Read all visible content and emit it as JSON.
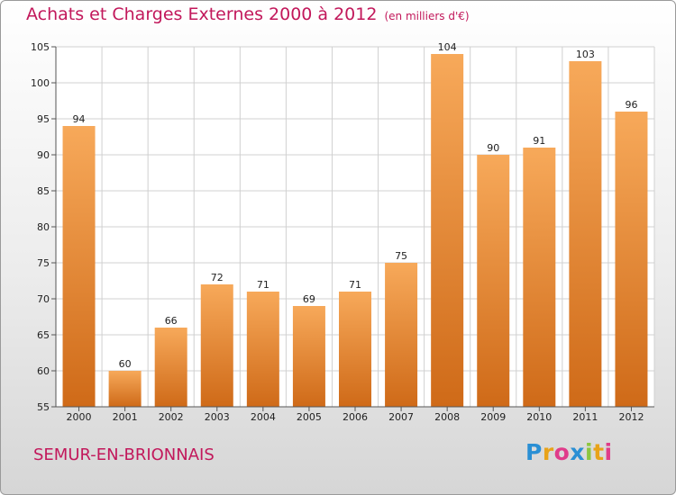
{
  "chart_data": {
    "type": "bar",
    "title": "Achats et Charges Externes 2000 à 2012",
    "subtitle": "(en milliers d'€)",
    "categories": [
      "2000",
      "2001",
      "2002",
      "2003",
      "2004",
      "2005",
      "2006",
      "2007",
      "2008",
      "2009",
      "2010",
      "2011",
      "2012"
    ],
    "values": [
      94,
      60,
      66,
      72,
      71,
      69,
      71,
      75,
      104,
      90,
      91,
      103,
      96
    ],
    "ylim": [
      55,
      105
    ],
    "yticks": [
      55,
      60,
      65,
      70,
      75,
      80,
      85,
      90,
      95,
      100,
      105
    ],
    "xlabel": "",
    "ylabel": "",
    "grid": true
  },
  "commune": "SEMUR-EN-BRIONNAIS",
  "brand": {
    "letters": [
      "P",
      "r",
      "o",
      "x",
      "i",
      "t",
      "i"
    ],
    "colors": [
      "#2a8fd4",
      "#e8a31a",
      "#e03c8a",
      "#2a8fd4",
      "#8cc63f",
      "#e8a31a",
      "#e03c8a"
    ]
  },
  "colors": {
    "bar_light": "#f7a95a",
    "bar_dark": "#cf6a18",
    "title": "#c2185b",
    "grid": "#d0d0d0"
  }
}
